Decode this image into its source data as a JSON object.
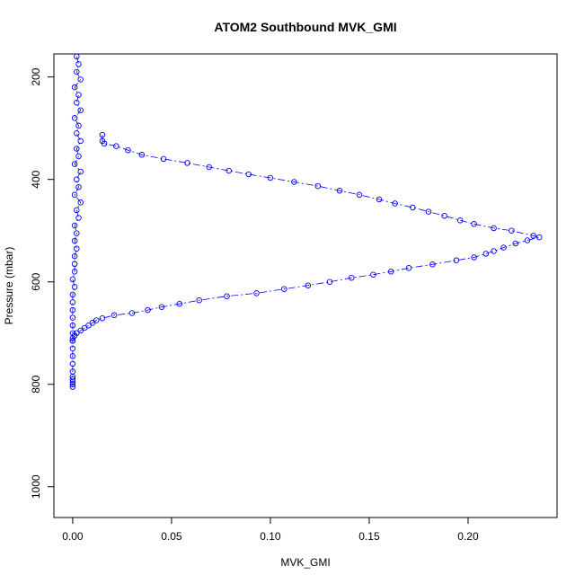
{
  "chart_data": {
    "type": "line",
    "title": "ATOM2 Southbound MVK_GMI",
    "xlabel": "MVK_GMI",
    "ylabel": "Pressure (mbar)",
    "xlim": [
      -0.0095,
      0.245
    ],
    "ylim": [
      1060,
      155
    ],
    "y_reversed": true,
    "grid": false,
    "legend": "none",
    "x_ticks": [
      0.0,
      0.05,
      0.1,
      0.15,
      0.2
    ],
    "x_tick_labels": [
      "0.00",
      "0.05",
      "0.10",
      "0.15",
      "0.20"
    ],
    "y_ticks": [
      200,
      400,
      600,
      800,
      1000
    ],
    "y_tick_labels": [
      "200",
      "400",
      "600",
      "800",
      "1000"
    ],
    "series_color": "#0000ff",
    "line_style": "dashdot",
    "marker": "open-circle",
    "series": [
      {
        "x": [
          0.015,
          0.015,
          0.016,
          0.022,
          0.028,
          0.035,
          0.046,
          0.058,
          0.069,
          0.079,
          0.089,
          0.1,
          0.112,
          0.124,
          0.135,
          0.145,
          0.155,
          0.163,
          0.172,
          0.18,
          0.188,
          0.196,
          0.203,
          0.213,
          0.222,
          0.233,
          0.236,
          0.23,
          0.224,
          0.218,
          0.213,
          0.209,
          0.203,
          0.194,
          0.182,
          0.17,
          0.161,
          0.152,
          0.141,
          0.13,
          0.119,
          0.107,
          0.093,
          0.078,
          0.064,
          0.054,
          0.045,
          0.038,
          0.03,
          0.021,
          0.015,
          0.012,
          0.01,
          0.008,
          0.006,
          0.004,
          0.002,
          0.001,
          0.0,
          0.0
        ],
        "y": [
          313,
          325,
          330,
          335,
          343,
          352,
          360,
          368,
          376,
          383,
          390,
          397,
          405,
          413,
          422,
          430,
          439,
          447,
          455,
          463,
          471,
          480,
          487,
          495,
          500,
          510,
          513,
          519,
          525,
          533,
          540,
          545,
          552,
          558,
          566,
          573,
          580,
          586,
          592,
          600,
          607,
          614,
          622,
          628,
          636,
          643,
          649,
          655,
          661,
          665,
          671,
          675,
          680,
          685,
          690,
          695,
          700,
          705,
          710,
          715
        ]
      },
      {
        "x": [
          0.002,
          0.003,
          0.002,
          0.004,
          0.001,
          0.003,
          0.002,
          0.004,
          0.001,
          0.003,
          0.002,
          0.004,
          0.002,
          0.003,
          0.001,
          0.004,
          0.002,
          0.003,
          0.001,
          0.004,
          0.002,
          0.003,
          0.001,
          0.002,
          0.001,
          0.002,
          0.001,
          0.001,
          0.001,
          0.0,
          0.001,
          0.0,
          0.0,
          0.0,
          0.0,
          0.0,
          0.0,
          0.0,
          0.0,
          0.0,
          0.0,
          0.0,
          0.0,
          0.0,
          0.0,
          0.0,
          0.0
        ],
        "y": [
          160,
          175,
          190,
          205,
          220,
          235,
          250,
          265,
          280,
          295,
          310,
          325,
          340,
          355,
          370,
          385,
          400,
          415,
          430,
          445,
          460,
          475,
          490,
          505,
          520,
          535,
          550,
          565,
          580,
          595,
          610,
          625,
          640,
          655,
          670,
          685,
          700,
          715,
          730,
          745,
          760,
          775,
          785,
          790,
          795,
          800,
          805
        ]
      }
    ]
  }
}
